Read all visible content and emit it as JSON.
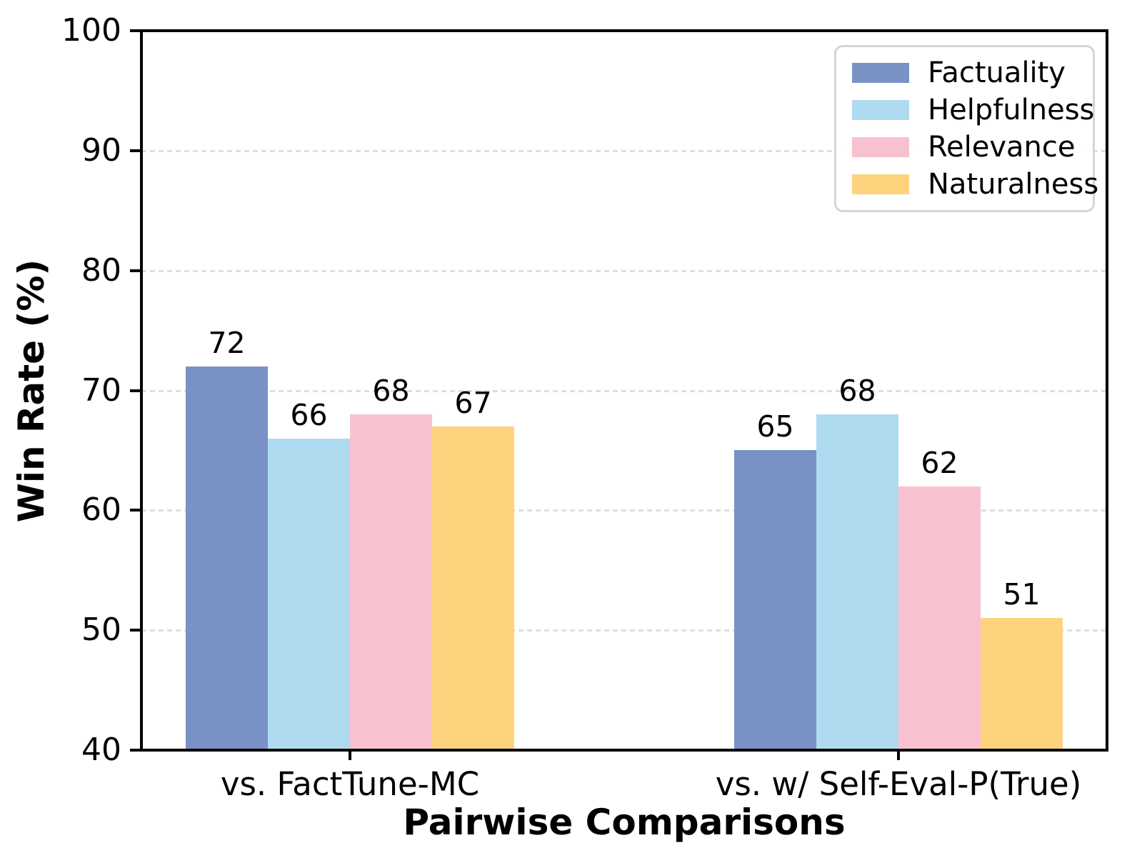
{
  "chart_data": {
    "type": "bar",
    "title": "",
    "xlabel": "Pairwise Comparisons",
    "ylabel": "Win Rate (%)",
    "ylim": [
      40,
      100
    ],
    "yticks": [
      40,
      50,
      60,
      70,
      80,
      90,
      100
    ],
    "categories": [
      "vs. FactTune-MC",
      "vs. w/ Self-Eval-P(True)"
    ],
    "series": [
      {
        "name": "Factuality",
        "color": "#7991c5",
        "values": [
          72,
          65
        ]
      },
      {
        "name": "Helpfulness",
        "color": "#aedbf0",
        "values": [
          66,
          68
        ]
      },
      {
        "name": "Relevance",
        "color": "#f7c1cf",
        "values": [
          68,
          62
        ]
      },
      {
        "name": "Naturalness",
        "color": "#fdd37e",
        "values": [
          67,
          51
        ]
      }
    ],
    "bar_value_labels": [
      [
        72,
        66,
        68,
        67
      ],
      [
        65,
        68,
        62,
        51
      ]
    ],
    "legend_position": "upper right",
    "grid": "horizontal dashed",
    "grid_color": "#dedede",
    "background_color": "#ffffff",
    "spine_color": "#000000"
  }
}
